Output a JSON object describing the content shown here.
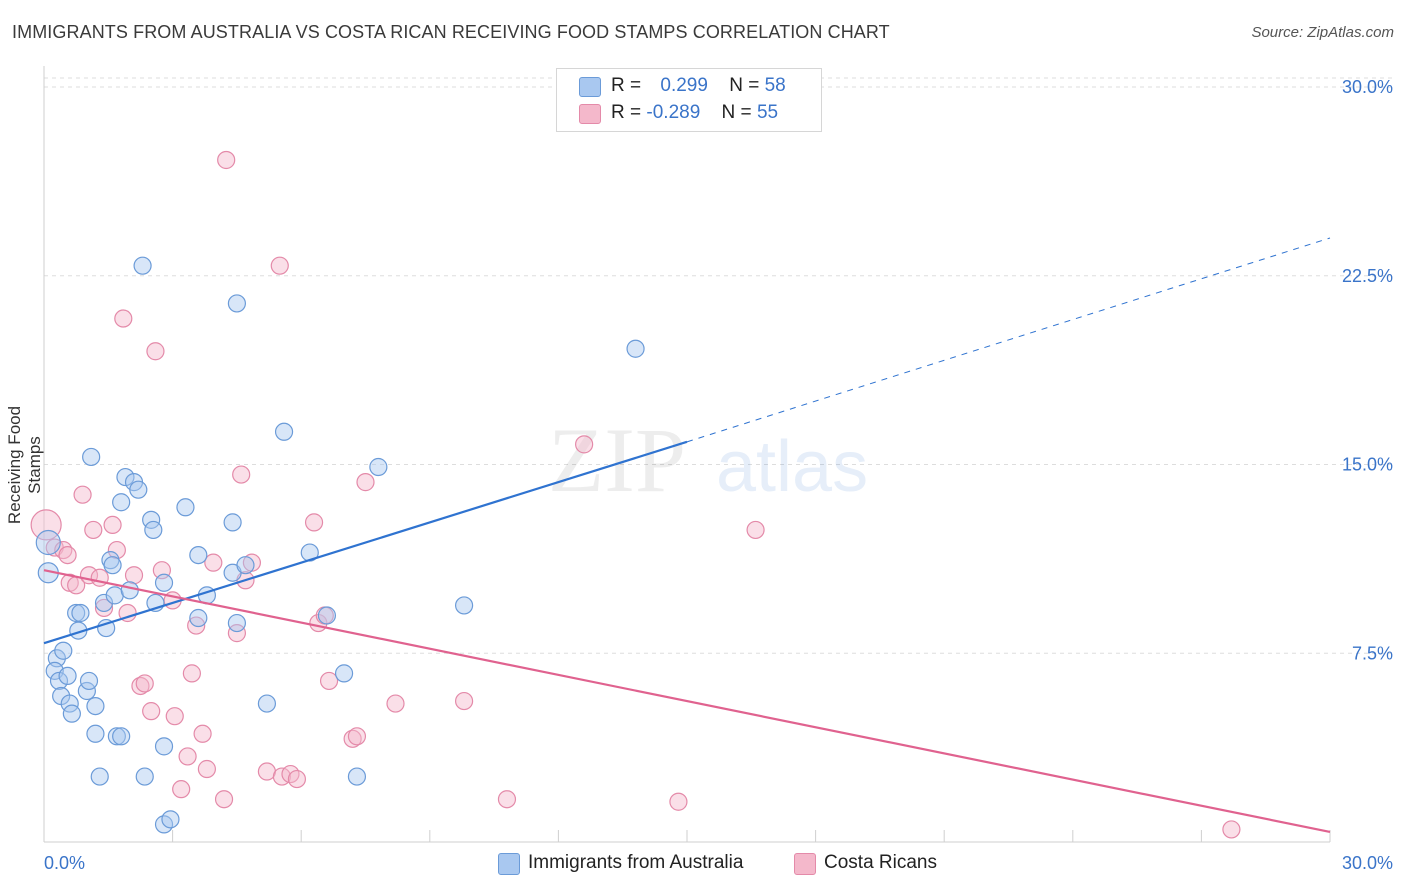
{
  "header": {
    "title": "IMMIGRANTS FROM AUSTRALIA VS COSTA RICAN RECEIVING FOOD STAMPS CORRELATION CHART",
    "source": "Source: ZipAtlas.com"
  },
  "watermark": {
    "zip": "ZIP",
    "atlas": "atlas"
  },
  "legend": {
    "rows": [
      {
        "r_label": "R =",
        "r_value": "0.299",
        "n_label": "N =",
        "n_value": "58",
        "color": "#a9c8f0"
      },
      {
        "r_label": "R =",
        "r_value": "-0.289",
        "n_label": "N =",
        "n_value": "55",
        "color": "#f4b8cb"
      }
    ]
  },
  "bottom_legend": {
    "items": [
      {
        "label": "Immigrants from Australia",
        "color": "#a9c8f0"
      },
      {
        "label": "Costa Ricans",
        "color": "#f4b8cb"
      }
    ]
  },
  "colors": {
    "blue_stroke": "#6b9bd8",
    "blue_fill": "#a9c8f0",
    "blue_line": "#2f73d0",
    "pink_stroke": "#e48aa9",
    "pink_fill": "#f4b8cb",
    "pink_line": "#e0628f",
    "axis_label": "#3a74c9",
    "grid": "#dddddd"
  },
  "chart_data": {
    "type": "scatter",
    "title": "IMMIGRANTS FROM AUSTRALIA VS COSTA RICAN RECEIVING FOOD STAMPS CORRELATION CHART",
    "xlabel": "",
    "ylabel": "Receiving Food Stamps",
    "xlim": [
      0,
      30
    ],
    "ylim": [
      0,
      30
    ],
    "x_tick_labels": [
      "0.0%",
      "30.0%"
    ],
    "y_tick_labels": [
      "7.5%",
      "15.0%",
      "22.5%",
      "30.0%"
    ],
    "y_ticks": [
      7.5,
      15.0,
      22.5,
      30.0
    ],
    "grid": "horizontal dashed",
    "series": [
      {
        "name": "Immigrants from Australia",
        "r": 0.299,
        "n": 58,
        "trend": {
          "x0": 0,
          "y0": 7.9,
          "x1": 15.0,
          "y1": 15.9,
          "dashed_to": {
            "x": 30,
            "y": 24.0
          }
        },
        "points": [
          [
            0.1,
            11.9
          ],
          [
            0.1,
            10.7
          ],
          [
            0.3,
            7.3
          ],
          [
            0.25,
            6.8
          ],
          [
            0.35,
            6.4
          ],
          [
            0.4,
            5.8
          ],
          [
            0.45,
            7.6
          ],
          [
            0.55,
            6.6
          ],
          [
            0.6,
            5.5
          ],
          [
            0.65,
            5.1
          ],
          [
            0.75,
            9.1
          ],
          [
            0.8,
            8.4
          ],
          [
            0.85,
            9.1
          ],
          [
            1.0,
            6.0
          ],
          [
            1.05,
            6.4
          ],
          [
            1.1,
            15.3
          ],
          [
            1.2,
            5.4
          ],
          [
            1.2,
            4.3
          ],
          [
            1.3,
            2.6
          ],
          [
            1.4,
            9.5
          ],
          [
            1.45,
            8.5
          ],
          [
            1.55,
            11.2
          ],
          [
            1.6,
            11.0
          ],
          [
            1.65,
            9.8
          ],
          [
            1.7,
            4.2
          ],
          [
            1.8,
            4.2
          ],
          [
            1.8,
            13.5
          ],
          [
            1.9,
            14.5
          ],
          [
            2.0,
            10.0
          ],
          [
            2.1,
            14.3
          ],
          [
            2.2,
            14.0
          ],
          [
            2.3,
            22.9
          ],
          [
            2.35,
            2.6
          ],
          [
            2.5,
            12.8
          ],
          [
            2.55,
            12.4
          ],
          [
            2.6,
            9.5
          ],
          [
            2.8,
            10.3
          ],
          [
            2.8,
            3.8
          ],
          [
            2.8,
            0.7
          ],
          [
            2.95,
            0.9
          ],
          [
            3.3,
            13.3
          ],
          [
            3.6,
            8.9
          ],
          [
            3.6,
            11.4
          ],
          [
            3.8,
            9.8
          ],
          [
            4.4,
            12.7
          ],
          [
            4.4,
            10.7
          ],
          [
            4.5,
            8.7
          ],
          [
            4.5,
            21.4
          ],
          [
            4.7,
            11.0
          ],
          [
            5.2,
            5.5
          ],
          [
            5.6,
            16.3
          ],
          [
            6.2,
            11.5
          ],
          [
            6.6,
            9.0
          ],
          [
            7.0,
            6.7
          ],
          [
            7.3,
            2.6
          ],
          [
            7.8,
            14.9
          ],
          [
            9.8,
            9.4
          ],
          [
            13.8,
            19.6
          ]
        ]
      },
      {
        "name": "Costa Ricans",
        "r": -0.289,
        "n": 55,
        "trend": {
          "x0": 0,
          "y0": 10.8,
          "x1": 30,
          "y1": 0.4
        },
        "points": [
          [
            0.05,
            12.6
          ],
          [
            0.25,
            11.7
          ],
          [
            0.45,
            11.6
          ],
          [
            0.55,
            11.4
          ],
          [
            0.6,
            10.3
          ],
          [
            0.75,
            10.2
          ],
          [
            0.9,
            13.8
          ],
          [
            1.05,
            10.6
          ],
          [
            1.15,
            12.4
          ],
          [
            1.3,
            10.5
          ],
          [
            1.4,
            9.3
          ],
          [
            1.6,
            12.6
          ],
          [
            1.7,
            11.6
          ],
          [
            1.85,
            20.8
          ],
          [
            1.95,
            9.1
          ],
          [
            2.1,
            10.6
          ],
          [
            2.25,
            6.2
          ],
          [
            2.35,
            6.3
          ],
          [
            2.5,
            5.2
          ],
          [
            2.6,
            19.5
          ],
          [
            2.75,
            10.8
          ],
          [
            3.0,
            9.6
          ],
          [
            3.05,
            5.0
          ],
          [
            3.2,
            2.1
          ],
          [
            3.35,
            3.4
          ],
          [
            3.45,
            6.7
          ],
          [
            3.55,
            8.6
          ],
          [
            3.7,
            4.3
          ],
          [
            3.8,
            2.9
          ],
          [
            3.95,
            11.1
          ],
          [
            4.2,
            1.7
          ],
          [
            4.25,
            27.1
          ],
          [
            4.5,
            8.3
          ],
          [
            4.6,
            14.6
          ],
          [
            4.7,
            10.4
          ],
          [
            4.85,
            11.1
          ],
          [
            5.2,
            2.8
          ],
          [
            5.5,
            22.9
          ],
          [
            5.55,
            2.6
          ],
          [
            5.75,
            2.7
          ],
          [
            5.9,
            2.5
          ],
          [
            6.3,
            12.7
          ],
          [
            6.4,
            8.7
          ],
          [
            6.55,
            9.0
          ],
          [
            6.65,
            6.4
          ],
          [
            7.2,
            4.1
          ],
          [
            7.3,
            4.2
          ],
          [
            7.5,
            14.3
          ],
          [
            8.2,
            5.5
          ],
          [
            9.8,
            5.6
          ],
          [
            10.8,
            1.7
          ],
          [
            12.6,
            15.8
          ],
          [
            14.8,
            1.6
          ],
          [
            16.6,
            12.4
          ],
          [
            27.7,
            0.5
          ]
        ]
      }
    ]
  }
}
